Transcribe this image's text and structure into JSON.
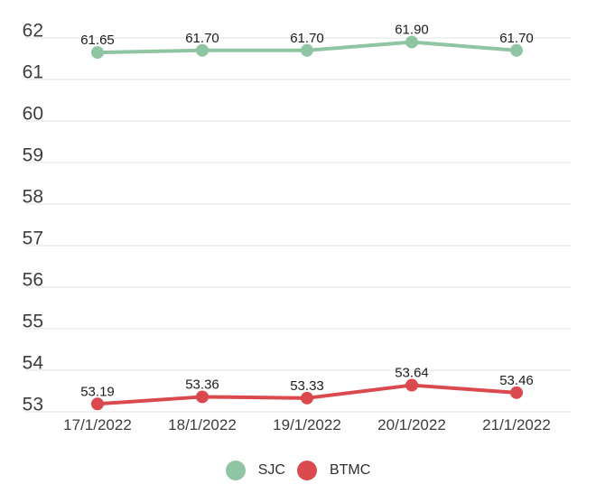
{
  "chart_data": {
    "type": "line",
    "title": "",
    "xlabel": "",
    "ylabel": "",
    "categories": [
      "17/1/2022",
      "18/1/2022",
      "19/1/2022",
      "20/1/2022",
      "21/1/2022"
    ],
    "series": [
      {
        "name": "SJC",
        "color": "#8fc5a2",
        "values": [
          61.65,
          61.7,
          61.7,
          61.9,
          61.7
        ],
        "labels": [
          "61.65",
          "61.70",
          "61.70",
          "61.90",
          "61.70"
        ]
      },
      {
        "name": "BTMC",
        "color": "#d9494e",
        "values": [
          53.19,
          53.36,
          53.33,
          53.64,
          53.46
        ],
        "labels": [
          "53.19",
          "53.36",
          "53.33",
          "53.64",
          "53.46"
        ]
      }
    ],
    "ylim": [
      53,
      62
    ],
    "yticks": [
      62,
      61,
      60,
      59,
      58,
      57,
      56,
      55,
      54,
      53
    ],
    "grid": true,
    "legend_position": "bottom"
  },
  "colors": {
    "background": "#ffffff",
    "gridline": "#e3e3e3",
    "axis_label": "#3d3d3d",
    "data_label": "#1d1d1d",
    "legend_label": "#2f2f2f"
  }
}
